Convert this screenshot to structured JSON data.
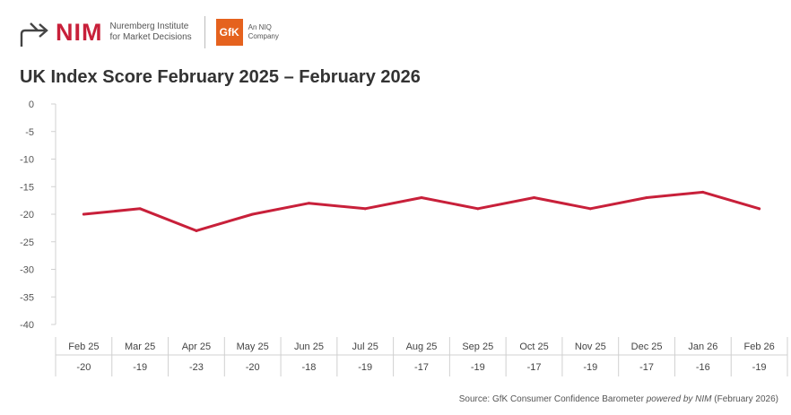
{
  "brand": {
    "nim_name": "NIM",
    "nim_line1": "Nuremberg Institute",
    "nim_line2": "for Market Decisions",
    "gfk_name": "GfK",
    "gfk_line1": "An NIQ",
    "gfk_line2": "Company"
  },
  "colors": {
    "line": "#c8203a",
    "nim": "#c8203a",
    "gfk": "#e5621e"
  },
  "chart_data": {
    "type": "line",
    "title": "UK Index Score February 2025 – February 2026",
    "categories": [
      "Feb 25",
      "Mar 25",
      "Apr 25",
      "May 25",
      "Jun 25",
      "Jul 25",
      "Aug 25",
      "Sep 25",
      "Oct 25",
      "Nov 25",
      "Dec 25",
      "Jan 26",
      "Feb 26"
    ],
    "values": [
      -20,
      -19,
      -23,
      -20,
      -18,
      -19,
      -17,
      -19,
      -17,
      -19,
      -17,
      -16,
      -19
    ],
    "yticks": [
      0,
      -5,
      -10,
      -15,
      -20,
      -25,
      -30,
      -35,
      -40
    ],
    "ylim": [
      -40,
      0
    ],
    "grid": false,
    "table_under_axis": true
  },
  "source": {
    "prefix": "Source: GfK Consumer Confidence Barometer ",
    "emph": "powered by NIM",
    "suffix": " (February 2026)"
  }
}
